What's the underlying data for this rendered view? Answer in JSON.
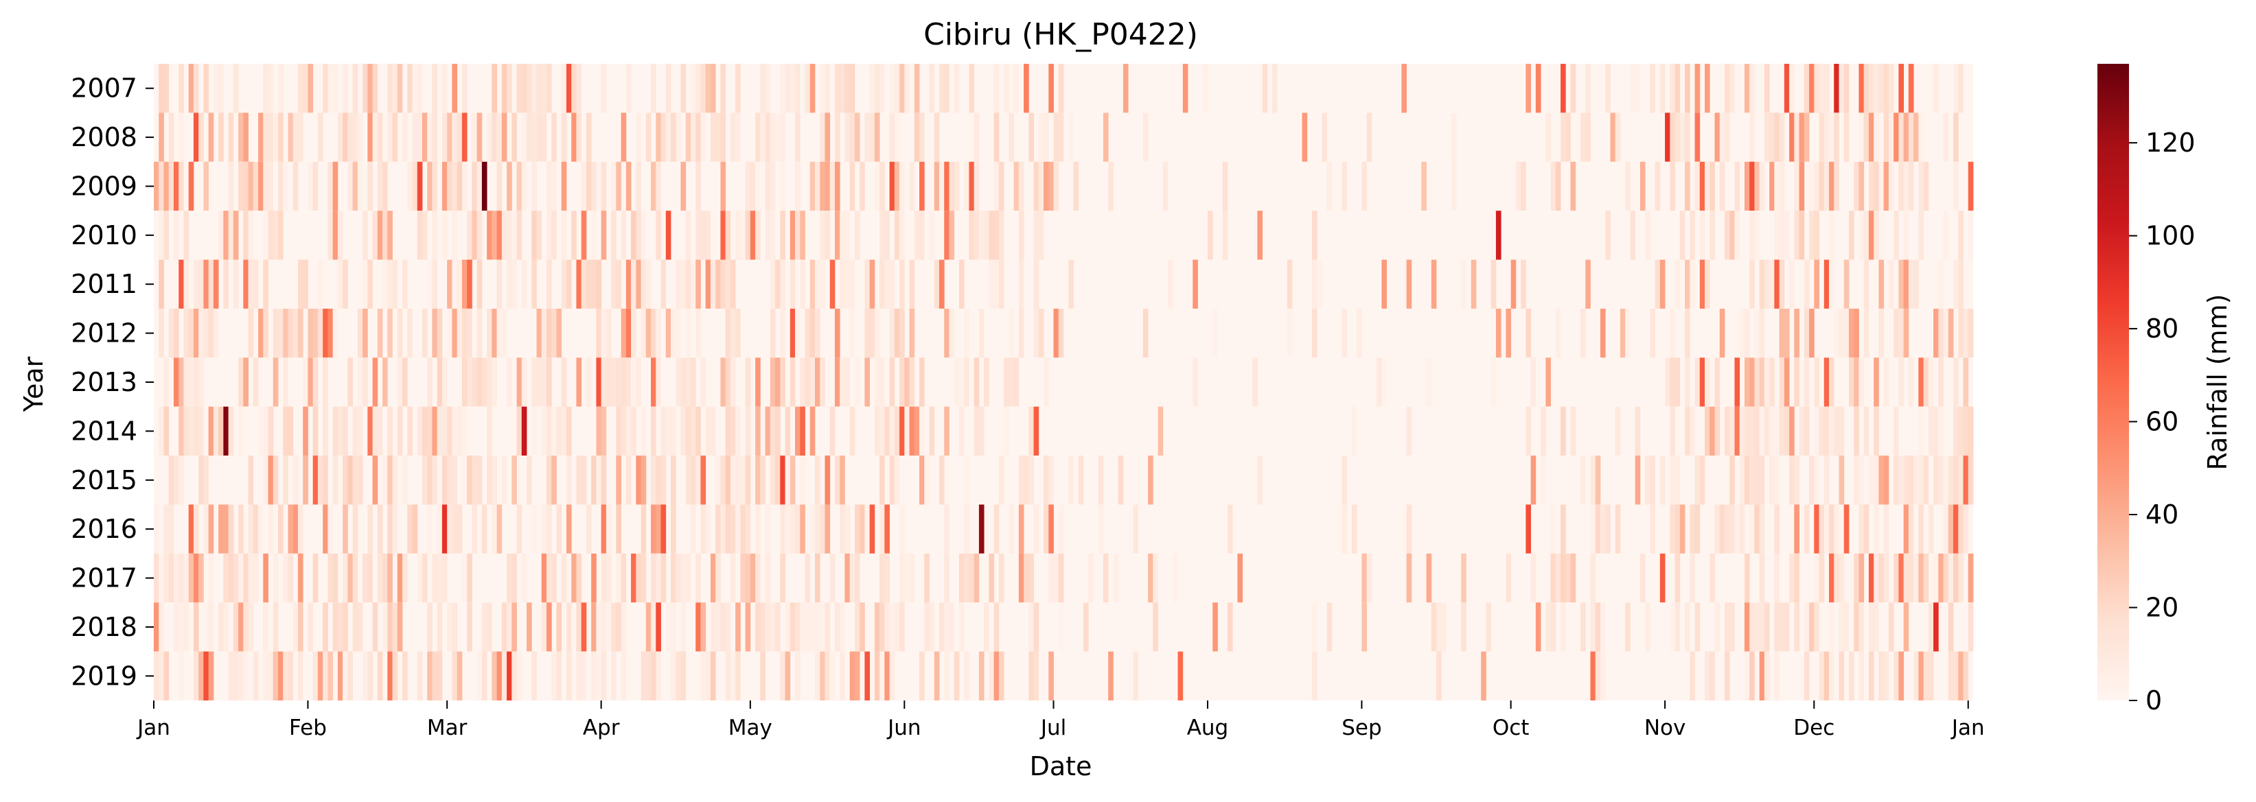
{
  "chart_data": {
    "type": "heatmap",
    "title": "Cibiru (HK_P0422)",
    "xlabel": "Date",
    "ylabel": "Year",
    "x_tick_labels": [
      "Jan",
      "Feb",
      "Mar",
      "Apr",
      "May",
      "Jun",
      "Jul",
      "Aug",
      "Sep",
      "Oct",
      "Nov",
      "Dec",
      "Jan"
    ],
    "x_ticks_day_of_year": [
      1,
      32,
      60,
      91,
      121,
      152,
      182,
      213,
      244,
      274,
      305,
      335,
      366
    ],
    "years": [
      "2007",
      "2008",
      "2009",
      "2010",
      "2011",
      "2012",
      "2013",
      "2014",
      "2015",
      "2016",
      "2017",
      "2018",
      "2019"
    ],
    "days_per_row": 366,
    "colorbar": {
      "label": "Rainfall (mm)",
      "range": [
        0,
        137
      ],
      "ticks": [
        0,
        20,
        40,
        60,
        80,
        100,
        120
      ],
      "colormap": [
        "#fff5f0",
        "#fee0d2",
        "#fcbba1",
        "#fc9272",
        "#fb6a4a",
        "#ef3b2c",
        "#cb181d",
        "#a50f15",
        "#67000d"
      ]
    },
    "notable_values": [
      {
        "year": "2009",
        "date": "Mar 8",
        "value": 135
      },
      {
        "year": "2014",
        "date": "Jan 15",
        "value": 130
      },
      {
        "year": "2016",
        "date": "Jun 16",
        "value": 125
      },
      {
        "year": "2007",
        "date": "Dec 5",
        "value": 95
      },
      {
        "year": "2010",
        "date": "Sep 28",
        "value": 100
      },
      {
        "year": "2009",
        "date": "Feb 23",
        "value": 80
      },
      {
        "year": "2014",
        "date": "Mar 16",
        "value": 105
      },
      {
        "year": "2008",
        "date": "Nov 1",
        "value": 88
      },
      {
        "year": "2018",
        "date": "Dec 25",
        "value": 92
      },
      {
        "year": "2015",
        "date": "May 7",
        "value": 82
      },
      {
        "year": "2016",
        "date": "Feb 28",
        "value": 90
      },
      {
        "year": "2019",
        "date": "Mar 13",
        "value": 85
      }
    ],
    "seasonal_pattern": {
      "wet_months": [
        "Jan",
        "Feb",
        "Mar",
        "Apr",
        "May",
        "Nov",
        "Dec"
      ],
      "dry_months": [
        "Jul",
        "Aug",
        "Sep"
      ]
    }
  }
}
